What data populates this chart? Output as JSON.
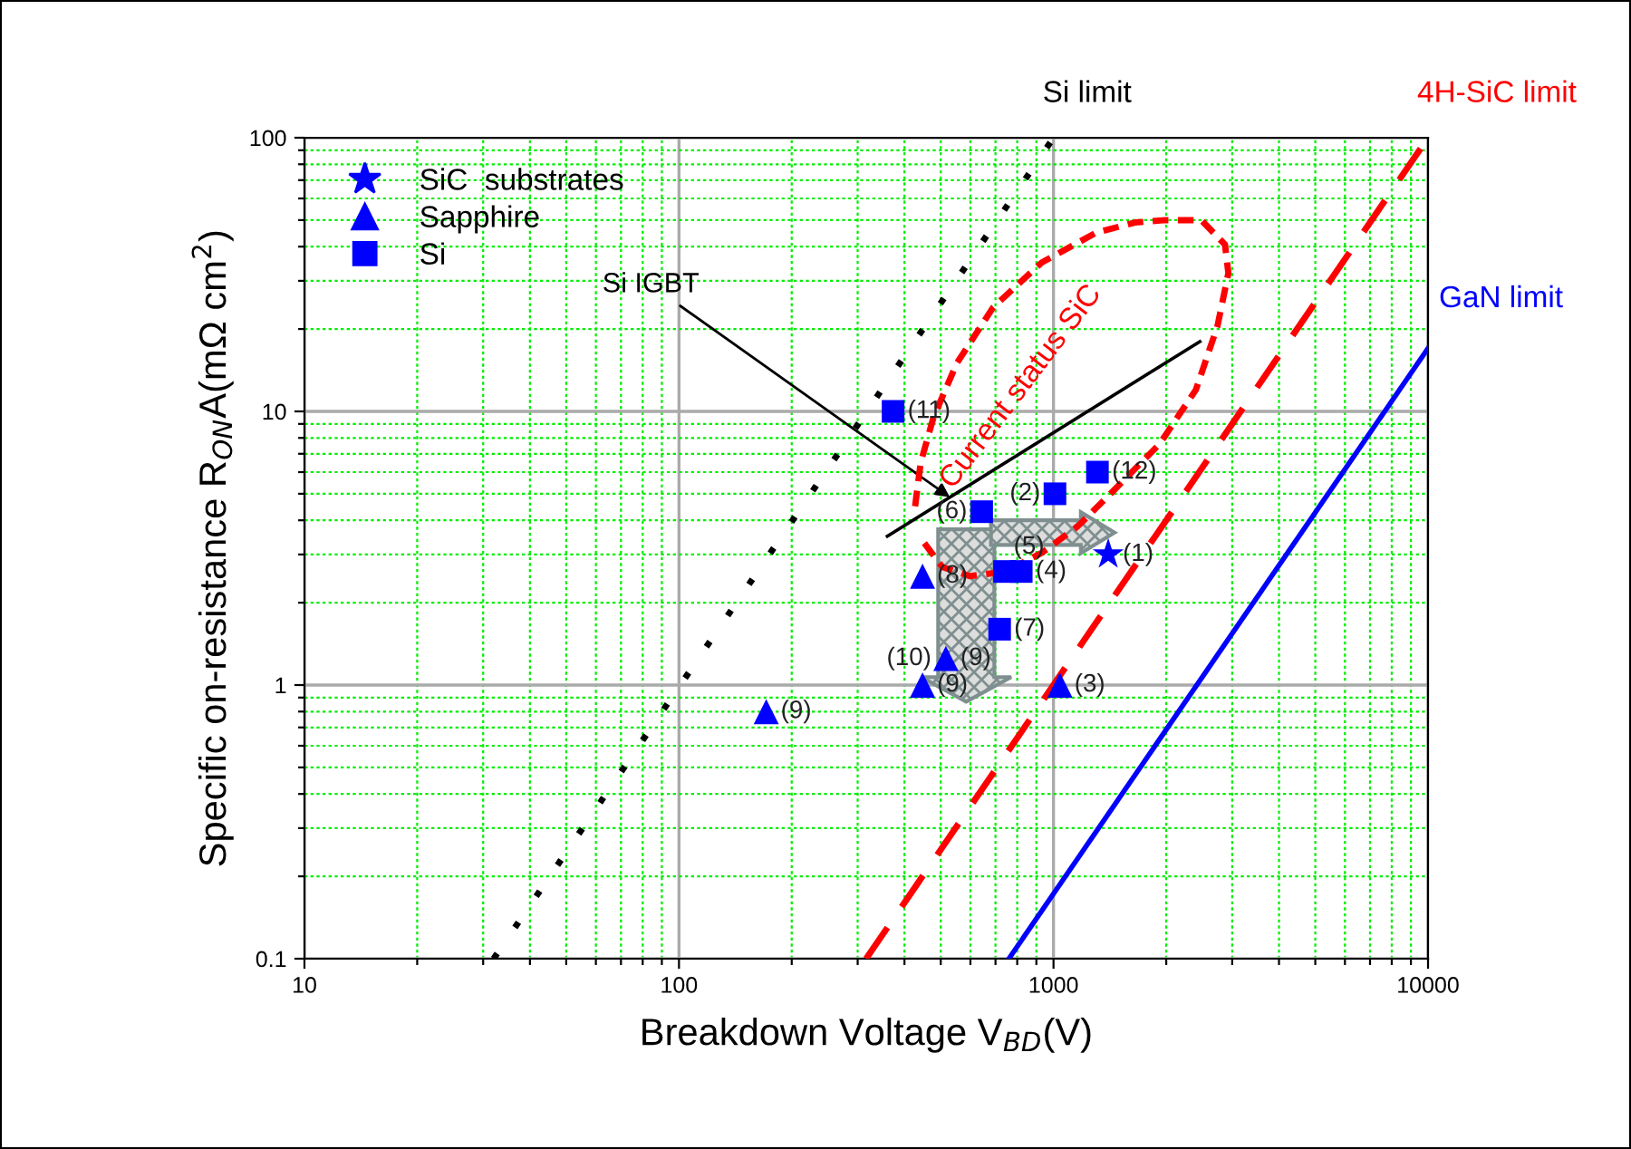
{
  "chart_data": {
    "type": "scatter",
    "xlabel": "Breakdown Voltage V$_{BD}$(V)",
    "ylabel": "Specific on-resistance R$_{ON}$A(mΩ cm$^{2}$)",
    "log": "xy",
    "xlim": [
      10,
      10000
    ],
    "ylim": [
      0.1,
      100
    ],
    "xticks": [
      10,
      {
        "value": 20,
        "label": null
      },
      {
        "value": 30,
        "label": null
      },
      {
        "value": 40,
        "label": null
      },
      {
        "value": 50,
        "label": null
      },
      {
        "value": 60,
        "label": null
      },
      {
        "value": 70,
        "label": null
      },
      {
        "value": 80,
        "label": null
      },
      {
        "value": 90,
        "label": null
      },
      100,
      {
        "value": 200,
        "label": null
      },
      {
        "value": 300,
        "label": null
      },
      {
        "value": 400,
        "label": null
      },
      {
        "value": 500,
        "label": null
      },
      {
        "value": 600,
        "label": null
      },
      {
        "value": 700,
        "label": null
      },
      {
        "value": 800,
        "label": null
      },
      {
        "value": 900,
        "label": null
      },
      1000,
      {
        "value": 2000,
        "label": null
      },
      {
        "value": 3000,
        "label": null
      },
      {
        "value": 4000,
        "label": null
      },
      {
        "value": 5000,
        "label": null
      },
      {
        "value": 6000,
        "label": null
      },
      {
        "value": 7000,
        "label": null
      },
      {
        "value": 8000,
        "label": null
      },
      {
        "value": 9000,
        "label": null
      },
      10000
    ],
    "yticks": [
      0.1,
      {
        "value": 0.2,
        "label": null
      },
      {
        "value": 0.3,
        "label": null
      },
      {
        "value": 0.4,
        "label": null
      },
      {
        "value": 0.5,
        "label": null
      },
      {
        "value": 0.6,
        "label": null
      },
      {
        "value": 0.7,
        "label": null
      },
      {
        "value": 0.8,
        "label": null
      },
      {
        "value": 0.9,
        "label": null
      },
      1,
      {
        "value": 2,
        "label": null
      },
      {
        "value": 3,
        "label": null
      },
      {
        "value": 4,
        "label": null
      },
      {
        "value": 5,
        "label": null
      },
      {
        "value": 6,
        "label": null
      },
      {
        "value": 7,
        "label": null
      },
      {
        "value": 8,
        "label": null
      },
      {
        "value": 9,
        "label": null
      },
      10,
      {
        "value": 20,
        "label": null
      },
      {
        "value": 30,
        "label": null
      },
      {
        "value": 40,
        "label": null
      },
      {
        "value": 50,
        "label": null
      },
      {
        "value": 60,
        "label": null
      },
      {
        "value": 70,
        "label": null
      },
      {
        "value": 80,
        "label": null
      },
      {
        "value": 90,
        "label": null
      },
      100
    ],
    "grid": true,
    "legend": "top left",
    "series": [
      {
        "name": "SiC  substrates",
        "marker": "star",
        "color": "#0000ff",
        "x": [
          1400
        ],
        "values": [
          3.0
        ]
      },
      {
        "name": "Sapphire",
        "marker": "triangle",
        "color": "#0000ff",
        "x": [
          171,
          447,
          447,
          516,
          1040
        ],
        "values": [
          0.8,
          2.5,
          1.0,
          1.25,
          1.0
        ]
      },
      {
        "name": "Si",
        "marker": "square",
        "color": "#0000ff",
        "x": [
          373,
          643,
          1009,
          1310,
          740,
          820,
          718
        ],
        "values": [
          10,
          4.3,
          5.0,
          6.0,
          2.6,
          2.6,
          1.6
        ]
      },
      {
        "name": "Si limit",
        "type": "line",
        "line_style": "dotted",
        "color": "#000000",
        "x": [
          32,
          1000
        ],
        "values": [
          0.1,
          100
        ]
      },
      {
        "name": "4H-SiC limit",
        "type": "line",
        "line_style": "dashed",
        "color": "#ff0000",
        "x": [
          316,
          10000
        ],
        "values": [
          0.1,
          100
        ]
      },
      {
        "name": "GaN limit",
        "type": "line",
        "line_style": "solid",
        "color": "#0000ff",
        "x": [
          760,
          10000
        ],
        "values": [
          0.1,
          17
        ]
      },
      {
        "name": "Si IGBT",
        "type": "line",
        "line_style": "solid",
        "color": "#000000",
        "x": [
          360,
          2460
        ],
        "values": [
          3.5,
          18
        ]
      },
      {
        "name": "Current status SiC",
        "type": "line",
        "line_style": "dashed",
        "color": "#ff0000",
        "x": [
          427,
          442,
          478,
          552,
          690,
          930,
          1300,
          1650,
          1990,
          2480,
          2870,
          2930,
          2740,
          2400,
          1920,
          1460,
          1160,
          930,
          745,
          597,
          505,
          452
        ],
        "values": [
          4.5,
          6.5,
          9.5,
          15,
          24,
          35,
          45,
          49,
          50,
          50,
          40.7,
          32,
          20.5,
          12,
          7.6,
          5.2,
          3.8,
          3.04,
          2.6,
          2.5,
          2.7,
          3.3
        ]
      }
    ],
    "annotations": [
      {
        "text": "(1)",
        "x": 1400,
        "y": 3.0
      },
      {
        "text": "(2)",
        "x": 1009,
        "y": 5.0
      },
      {
        "text": "(12)",
        "x": 1310,
        "y": 6.0
      },
      {
        "text": "(6)",
        "x": 643,
        "y": 4.3
      },
      {
        "text": "(11)",
        "x": 373,
        "y": 10
      },
      {
        "text": "(8)",
        "x": 447,
        "y": 2.5
      },
      {
        "text": "(5)",
        "x": 740,
        "y": 2.6
      },
      {
        "text": "(4)",
        "x": 820,
        "y": 2.6
      },
      {
        "text": "(7)",
        "x": 718,
        "y": 1.6
      },
      {
        "text": "(9)",
        "x": 516,
        "y": 1.25
      },
      {
        "text": "(10)",
        "x": 516,
        "y": 1.25
      },
      {
        "text": "(9)",
        "x": 447,
        "y": 1.0
      },
      {
        "text": "(3)",
        "x": 1040,
        "y": 1.0
      },
      {
        "text": "(9)",
        "x": 171,
        "y": 0.8
      }
    ]
  }
}
